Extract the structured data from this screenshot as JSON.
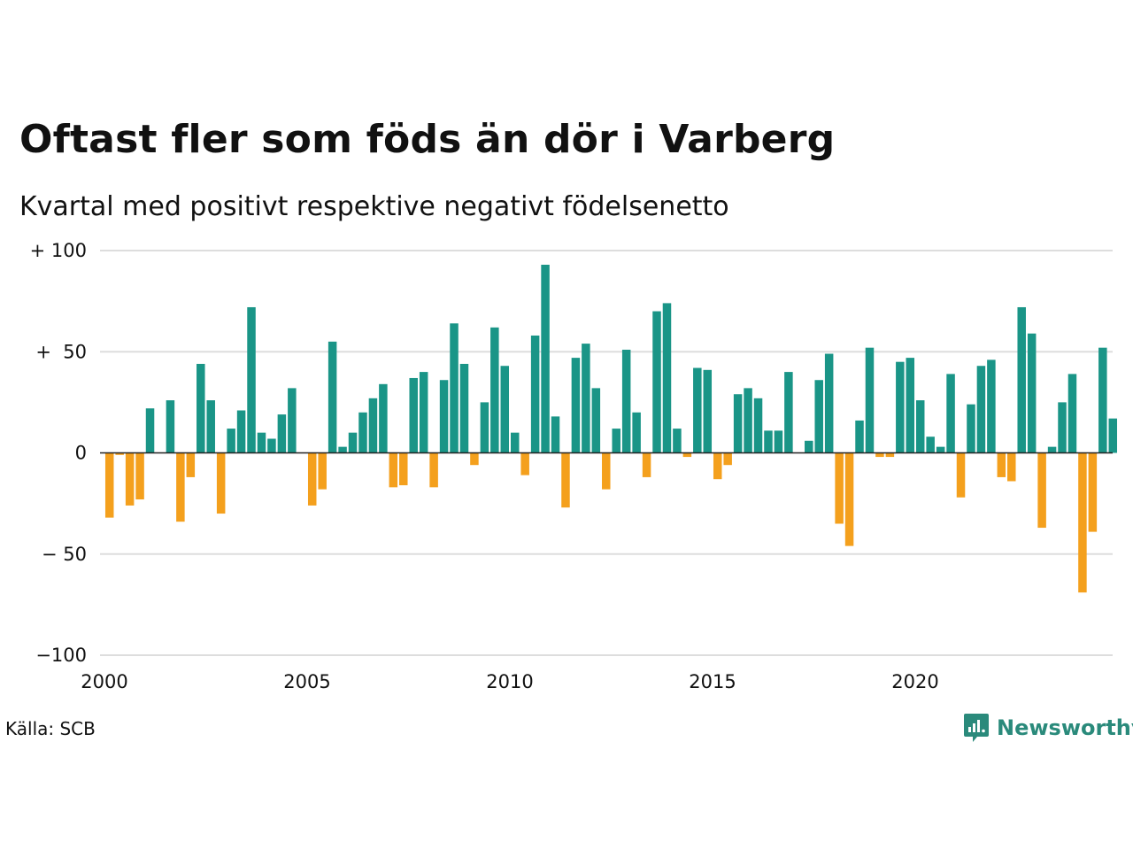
{
  "title": "Oftast fler som föds än dör i Varberg",
  "subtitle": "Kvartal med positivt respektive negativt födelsenetto",
  "source": "Källa: SCB",
  "brand": {
    "name": "Newsworthy",
    "icon": "newsworthy-logo-icon"
  },
  "colors": {
    "positive": "#1a9587",
    "negative": "#f4a01d",
    "brand": "#2a8a7b",
    "grid": "#dddddd",
    "zero_line": "#222222"
  },
  "chart_data": {
    "type": "bar",
    "title": "Oftast fler som föds än dör i Varberg",
    "subtitle": "Kvartal med positivt respektive negativt födelsenetto",
    "xlabel": "",
    "ylabel": "",
    "x_start": "2000 Q1",
    "x_ticks": [
      "2000",
      "2005",
      "2010",
      "2015",
      "2020"
    ],
    "y_ticks": [
      {
        "value": 100,
        "label": "+ 100"
      },
      {
        "value": 50,
        "label": "+  50"
      },
      {
        "value": 0,
        "label": "0"
      },
      {
        "value": -50,
        "label": "− 50"
      },
      {
        "value": -100,
        "label": "−100"
      }
    ],
    "ylim": [
      -100,
      100
    ],
    "grid": true,
    "values": [
      -32,
      -1,
      -26,
      -23,
      22,
      0,
      26,
      -34,
      -12,
      44,
      26,
      -30,
      12,
      21,
      72,
      10,
      7,
      19,
      32,
      0,
      -26,
      -18,
      55,
      3,
      10,
      20,
      27,
      34,
      -17,
      -16,
      37,
      40,
      -17,
      36,
      64,
      44,
      -6,
      25,
      62,
      43,
      10,
      -11,
      58,
      93,
      18,
      -27,
      47,
      54,
      32,
      -18,
      12,
      51,
      20,
      -12,
      70,
      74,
      12,
      -2,
      42,
      41,
      -13,
      -6,
      29,
      32,
      27,
      11,
      11,
      40,
      0,
      6,
      36,
      49,
      -35,
      -46,
      16,
      52,
      -2,
      -2,
      45,
      47,
      26,
      8,
      3,
      39,
      -22,
      24,
      43,
      46,
      -12,
      -14,
      72,
      59,
      -37,
      3,
      25,
      39,
      -69,
      -39,
      52,
      17
    ]
  }
}
